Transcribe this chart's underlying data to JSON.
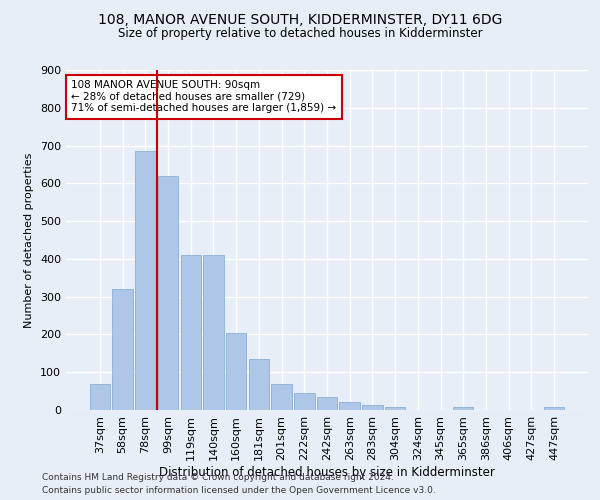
{
  "title": "108, MANOR AVENUE SOUTH, KIDDERMINSTER, DY11 6DG",
  "subtitle": "Size of property relative to detached houses in Kidderminster",
  "xlabel": "Distribution of detached houses by size in Kidderminster",
  "ylabel": "Number of detached properties",
  "categories": [
    "37sqm",
    "58sqm",
    "78sqm",
    "99sqm",
    "119sqm",
    "140sqm",
    "160sqm",
    "181sqm",
    "201sqm",
    "222sqm",
    "242sqm",
    "263sqm",
    "283sqm",
    "304sqm",
    "324sqm",
    "345sqm",
    "365sqm",
    "386sqm",
    "406sqm",
    "427sqm",
    "447sqm"
  ],
  "values": [
    68,
    320,
    685,
    620,
    410,
    410,
    205,
    135,
    68,
    45,
    35,
    20,
    12,
    8,
    0,
    0,
    8,
    0,
    0,
    0,
    8
  ],
  "bar_color": "#aec6e8",
  "bar_edge_color": "#7fa8d0",
  "vline_color": "#cc0000",
  "annotation_text": "108 MANOR AVENUE SOUTH: 90sqm\n← 28% of detached houses are smaller (729)\n71% of semi-detached houses are larger (1,859) →",
  "annotation_box_color": "#ffffff",
  "annotation_box_edge_color": "#cc0000",
  "ylim": [
    0,
    900
  ],
  "yticks": [
    0,
    100,
    200,
    300,
    400,
    500,
    600,
    700,
    800,
    900
  ],
  "background_color": "#e8eef8",
  "grid_color": "#ffffff",
  "footer_line1": "Contains HM Land Registry data © Crown copyright and database right 2024.",
  "footer_line2": "Contains public sector information licensed under the Open Government Licence v3.0."
}
